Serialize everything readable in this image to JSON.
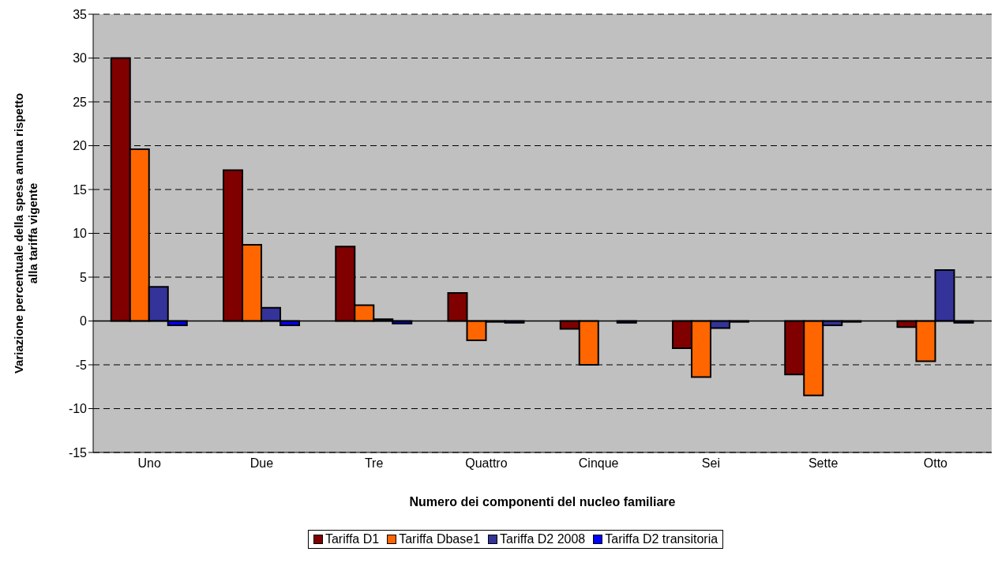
{
  "chart_data": {
    "type": "bar",
    "xlabel": "Numero dei componenti del nucleo familiare",
    "ylabel": "Variazione percentuale della spesa annua rispetto alla tariffa vigente",
    "categories": [
      "Uno",
      "Due",
      "Tre",
      "Quattro",
      "Cinque",
      "Sei",
      "Sette",
      "Otto"
    ],
    "series": [
      {
        "name": "Tariffa D1",
        "color": "#800000",
        "values": [
          30,
          17.2,
          8.5,
          3.2,
          -0.9,
          -3.1,
          -6.1,
          -0.7
        ]
      },
      {
        "name": "Tariffa Dbase1",
        "color": "#ff6600",
        "values": [
          19.6,
          8.7,
          1.8,
          -2.2,
          -5.0,
          -6.4,
          -8.5,
          -4.6
        ]
      },
      {
        "name": "Tariffa D2 2008",
        "color": "#333399",
        "values": [
          3.9,
          1.5,
          0.2,
          -0.1,
          0,
          -0.8,
          -0.5,
          5.8
        ]
      },
      {
        "name": "Tariffa D2 transitoria",
        "color": "#0000ff",
        "values": [
          -0.5,
          -0.5,
          -0.3,
          -0.2,
          -0.2,
          -0.1,
          -0.1,
          -0.2
        ]
      }
    ],
    "ylim": [
      -15,
      35
    ],
    "yticks": [
      -15,
      -10,
      -5,
      0,
      5,
      10,
      15,
      20,
      25,
      30,
      35
    ],
    "grid": "y",
    "legend": "bottom"
  }
}
